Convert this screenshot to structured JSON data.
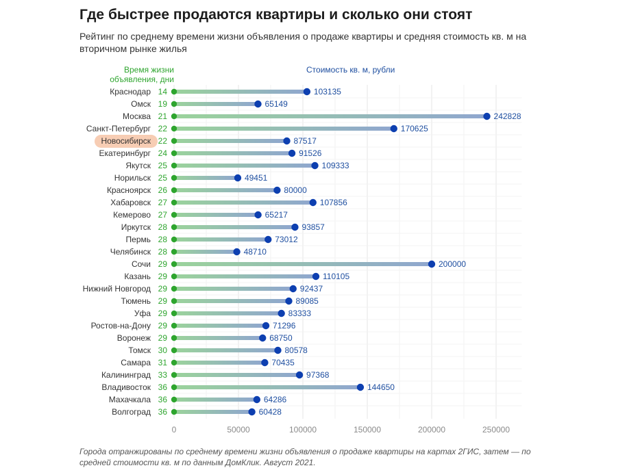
{
  "header": {
    "title": "Где быстрее продаются квартиры и сколько они стоят",
    "subtitle": "Рейтинг по среднему времени жизни объявления о продаже квартиры и средняя стоимость кв. м на вторичном рынке жилья"
  },
  "footer": {
    "note": "Города отранжированы по среднему времени жизни объявления о продаже квартиры на картах 2ГИС, затем — по средней стоимости кв. м по данным ДомКлик. Август 2021."
  },
  "colors": {
    "days": "#2ea52e",
    "price": "#1f4fa0",
    "dot": "#0d3fb0",
    "highlight": "#f7cdb4"
  },
  "chart_data": {
    "type": "lollipop",
    "column_headers": {
      "days": "Время жизни объявления, дни",
      "price": "Стоимость кв. м, рубли"
    },
    "highlighted": "Новосибирск",
    "xlim": [
      0,
      270000
    ],
    "xticks": [
      0,
      50000,
      100000,
      150000,
      200000,
      250000
    ],
    "grid": true,
    "rows": [
      {
        "city": "Краснодар",
        "days": 14,
        "price": 103135
      },
      {
        "city": "Омск",
        "days": 19,
        "price": 65149
      },
      {
        "city": "Москва",
        "days": 21,
        "price": 242828
      },
      {
        "city": "Санкт-Петербург",
        "days": 22,
        "price": 170625
      },
      {
        "city": "Новосибирск",
        "days": 22,
        "price": 87517
      },
      {
        "city": "Екатеринбург",
        "days": 24,
        "price": 91526
      },
      {
        "city": "Якутск",
        "days": 25,
        "price": 109333
      },
      {
        "city": "Норильск",
        "days": 25,
        "price": 49451
      },
      {
        "city": "Красноярск",
        "days": 26,
        "price": 80000
      },
      {
        "city": "Хабаровск",
        "days": 27,
        "price": 107856
      },
      {
        "city": "Кемерово",
        "days": 27,
        "price": 65217
      },
      {
        "city": "Иркутск",
        "days": 28,
        "price": 93857
      },
      {
        "city": "Пермь",
        "days": 28,
        "price": 73012
      },
      {
        "city": "Челябинск",
        "days": 28,
        "price": 48710
      },
      {
        "city": "Сочи",
        "days": 29,
        "price": 200000
      },
      {
        "city": "Казань",
        "days": 29,
        "price": 110105
      },
      {
        "city": "Нижний Новгород",
        "days": 29,
        "price": 92437
      },
      {
        "city": "Тюмень",
        "days": 29,
        "price": 89085
      },
      {
        "city": "Уфа",
        "days": 29,
        "price": 83333
      },
      {
        "city": "Ростов-на-Дону",
        "days": 29,
        "price": 71296
      },
      {
        "city": "Воронеж",
        "days": 29,
        "price": 68750
      },
      {
        "city": "Томск",
        "days": 30,
        "price": 80578
      },
      {
        "city": "Самара",
        "days": 31,
        "price": 70435
      },
      {
        "city": "Калининград",
        "days": 33,
        "price": 97368
      },
      {
        "city": "Владивосток",
        "days": 36,
        "price": 144650
      },
      {
        "city": "Махачкала",
        "days": 36,
        "price": 64286
      },
      {
        "city": "Волгоград",
        "days": 36,
        "price": 60428
      }
    ]
  }
}
